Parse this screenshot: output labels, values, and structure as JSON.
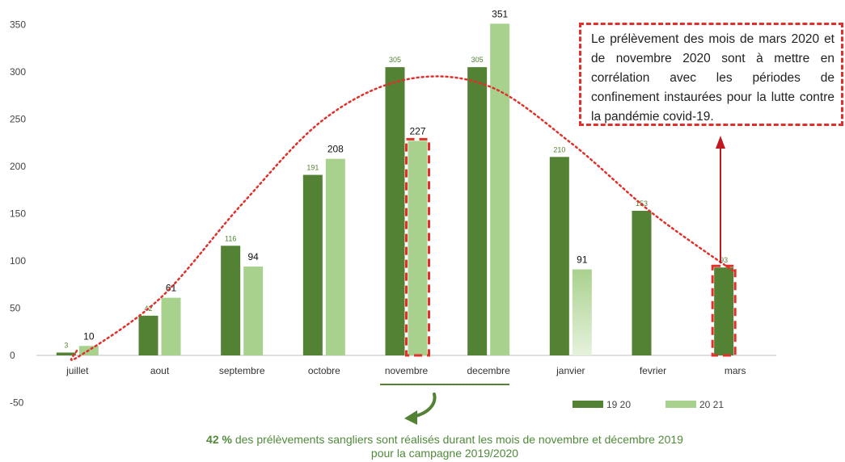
{
  "chart_data": {
    "type": "bar",
    "categories": [
      "juillet",
      "aout",
      "septembre",
      "octobre",
      "novembre",
      "decembre",
      "janvier",
      "fevrier",
      "mars"
    ],
    "series": [
      {
        "name": "19 20",
        "values": [
          3,
          42,
          116,
          191,
          305,
          305,
          210,
          153,
          93
        ],
        "labels": [
          "3",
          "42",
          "116",
          "191",
          "305",
          "305",
          "210",
          "153",
          "93"
        ]
      },
      {
        "name": "20 21",
        "values": [
          10,
          61,
          94,
          208,
          227,
          351,
          91,
          null,
          null
        ],
        "labels": [
          "10",
          "61",
          "94",
          "208",
          "227",
          "351",
          "91",
          "",
          ""
        ]
      }
    ],
    "ylim": [
      -50,
      350
    ],
    "yticks": [
      "-50",
      "0",
      "50",
      "100",
      "150",
      "200",
      "250",
      "300",
      "350"
    ],
    "legend_position": "bottom-right",
    "grid": false,
    "trendline": "polynomial, red dotted",
    "highlights": [
      "novembre 20 21",
      "mars 19 20"
    ]
  },
  "colors": {
    "series_1920": "#548235",
    "series_2021": "#a9d18e",
    "highlight": "#e0302a",
    "caption": "#4f8a3a"
  },
  "annotation": {
    "text": "Le prélèvement des mois de mars 2020 et de novembre 2020 sont à mettre en corrélation avec les périodes de confinement instaurées pour la lutte contre la pandémie covid-19."
  },
  "caption": {
    "bold": "42 %",
    "text": " des prélèvements sangliers sont réalisés durant les mois de novembre et décembre 2019 pour la campagne 2019/2020"
  },
  "icons": {
    "arrow_up": "red-arrow-up-icon",
    "arrow_curved": "green-curved-arrow-icon"
  }
}
